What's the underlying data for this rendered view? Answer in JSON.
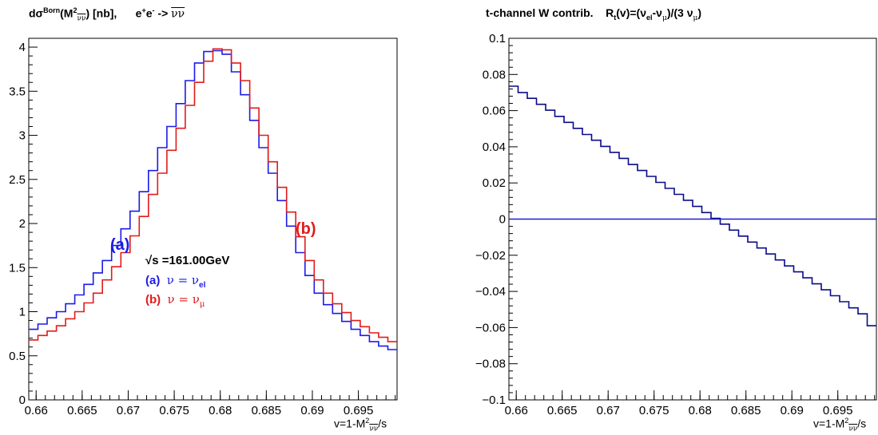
{
  "titles": {
    "left_a": "dσ",
    "left_sup": "Born",
    "left_b": "(M",
    "left_sub": "νν",
    "left_sup2": "2",
    "left_c": ") [nb],",
    "left_d": "e",
    "left_e": "e",
    "left_f": "->",
    "left_g": "νν",
    "right_a": "t-channel W contrib.",
    "right_b": "R",
    "right_b_sub": "t",
    "right_c": "(v)=(ν",
    "right_c_sub": "el",
    "right_d": "-ν",
    "right_d_sub": "μ",
    "right_e": ")/(3  ν",
    "right_e_sub": "μ",
    "right_f": ")"
  },
  "legend": {
    "sqrt_s": "√s =161.00GeV",
    "a_prefix": "(a)",
    "a_eq": "ν = ν",
    "a_sub": "el",
    "b_prefix": "(b)",
    "b_eq": "ν = ν",
    "b_sub": "μ",
    "curve_label_a": "(a)",
    "curve_label_b": "(b)"
  },
  "colors": {
    "a": "#1b1be6",
    "b": "#e01b1b",
    "ratio": "#0a0a8a",
    "zero": "#1b1bd0"
  },
  "chart_data": [
    {
      "type": "line",
      "title": "dσ^Born(M²_νν̄) [nb],   e⁺e⁻ -> νν̄",
      "xlabel": "v=1-M²_νν̄/s",
      "xlim": [
        0.6592,
        0.6992
      ],
      "ylim": [
        0,
        4.1
      ],
      "xticks": [
        "0.66",
        "0.665",
        "0.67",
        "0.675",
        "0.68",
        "0.685",
        "0.69",
        "0.695"
      ],
      "yticks": [
        "0",
        "0.5",
        "1",
        "1.5",
        "2",
        "2.5",
        "3",
        "3.5",
        "4"
      ],
      "bin_edges_from": 0.6592,
      "bin_width": 0.001,
      "series": [
        {
          "name": "(a) ν = ν_el",
          "values": [
            0.8,
            0.86,
            0.93,
            1.0,
            1.09,
            1.19,
            1.31,
            1.44,
            1.58,
            1.75,
            1.94,
            2.14,
            2.36,
            2.6,
            2.86,
            3.1,
            3.36,
            3.62,
            3.82,
            3.95,
            3.96,
            3.92,
            3.72,
            3.46,
            3.17,
            2.86,
            2.57,
            2.26,
            1.97,
            1.67,
            1.41,
            1.21,
            1.08,
            0.98,
            0.89,
            0.8,
            0.73,
            0.66,
            0.61,
            0.57
          ]
        },
        {
          "name": "(b) ν = ν_μ",
          "values": [
            0.68,
            0.73,
            0.78,
            0.84,
            0.92,
            1.0,
            1.1,
            1.21,
            1.36,
            1.51,
            1.67,
            1.86,
            2.08,
            2.33,
            2.57,
            2.83,
            3.08,
            3.34,
            3.6,
            3.84,
            3.98,
            3.97,
            3.82,
            3.62,
            3.31,
            3.0,
            2.7,
            2.41,
            2.13,
            1.85,
            1.58,
            1.36,
            1.21,
            1.09,
            0.99,
            0.9,
            0.83,
            0.76,
            0.71,
            0.66
          ]
        }
      ]
    },
    {
      "type": "line",
      "title": "t-channel W contrib.   R_t(v)=(ν_el-ν_μ)/(3 ν_μ)",
      "xlabel": "v=1-M²_νν̄/s",
      "xlim": [
        0.6592,
        0.6992
      ],
      "ylim": [
        -0.1,
        0.1
      ],
      "xticks": [
        "0.66",
        "0.665",
        "0.67",
        "0.675",
        "0.68",
        "0.685",
        "0.69",
        "0.695"
      ],
      "yticks": [
        "−0.1",
        "−0.08",
        "−0.06",
        "−0.04",
        "−0.02",
        "0",
        "0.02",
        "0.04",
        "0.06",
        "0.08",
        "0.1"
      ],
      "bin_edges_from": 0.6592,
      "bin_width": 0.001,
      "series": [
        {
          "name": "R_t",
          "values": [
            0.0735,
            0.07,
            0.0668,
            0.0635,
            0.0602,
            0.0568,
            0.0535,
            0.0502,
            0.0468,
            0.0436,
            0.0402,
            0.0369,
            0.0336,
            0.0302,
            0.0269,
            0.0236,
            0.0203,
            0.017,
            0.0137,
            0.0104,
            0.007,
            0.0036,
            0.0004,
            -0.0028,
            -0.0061,
            -0.0094,
            -0.0127,
            -0.016,
            -0.0193,
            -0.0226,
            -0.0259,
            -0.0292,
            -0.0325,
            -0.0358,
            -0.0391,
            -0.0424,
            -0.0457,
            -0.0491,
            -0.0524,
            -0.059
          ]
        },
        {
          "name": "zero",
          "values": [
            0,
            0
          ]
        }
      ]
    }
  ]
}
